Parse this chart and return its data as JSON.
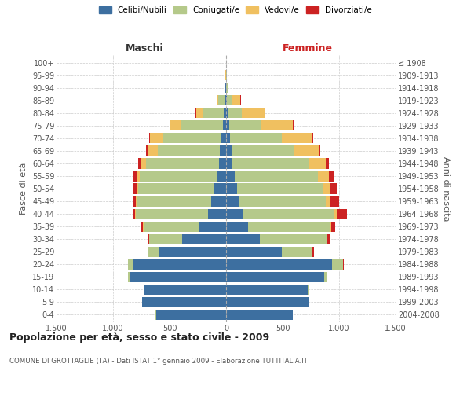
{
  "age_groups": [
    "0-4",
    "5-9",
    "10-14",
    "15-19",
    "20-24",
    "25-29",
    "30-34",
    "35-39",
    "40-44",
    "45-49",
    "50-54",
    "55-59",
    "60-64",
    "65-69",
    "70-74",
    "75-79",
    "80-84",
    "85-89",
    "90-94",
    "95-99",
    "100+"
  ],
  "birth_years": [
    "2004-2008",
    "1999-2003",
    "1994-1998",
    "1989-1993",
    "1984-1988",
    "1979-1983",
    "1974-1978",
    "1969-1973",
    "1964-1968",
    "1959-1963",
    "1954-1958",
    "1949-1953",
    "1944-1948",
    "1939-1943",
    "1934-1938",
    "1929-1933",
    "1924-1928",
    "1919-1923",
    "1914-1918",
    "1909-1913",
    "≤ 1908"
  ],
  "male": {
    "celibi": [
      620,
      740,
      720,
      850,
      820,
      590,
      390,
      240,
      160,
      130,
      110,
      85,
      65,
      55,
      45,
      28,
      18,
      12,
      4,
      2,
      1
    ],
    "coniugati": [
      2,
      4,
      8,
      18,
      45,
      100,
      290,
      490,
      640,
      660,
      670,
      680,
      640,
      550,
      510,
      370,
      190,
      55,
      6,
      1,
      0
    ],
    "vedovi": [
      0,
      0,
      0,
      0,
      1,
      2,
      3,
      4,
      7,
      10,
      15,
      28,
      48,
      88,
      118,
      95,
      58,
      18,
      4,
      1,
      0
    ],
    "divorziati": [
      0,
      0,
      0,
      1,
      2,
      5,
      10,
      15,
      20,
      25,
      30,
      30,
      25,
      14,
      10,
      5,
      2,
      0,
      0,
      0,
      0
    ]
  },
  "female": {
    "nubili": [
      590,
      730,
      720,
      870,
      940,
      490,
      300,
      195,
      150,
      120,
      95,
      75,
      58,
      48,
      35,
      25,
      12,
      8,
      3,
      2,
      1
    ],
    "coniugati": [
      2,
      4,
      8,
      25,
      95,
      270,
      590,
      730,
      810,
      760,
      760,
      740,
      680,
      555,
      455,
      290,
      130,
      48,
      8,
      2,
      0
    ],
    "vedovi": [
      0,
      0,
      0,
      1,
      2,
      5,
      5,
      8,
      18,
      38,
      65,
      95,
      145,
      215,
      270,
      275,
      195,
      72,
      12,
      2,
      0
    ],
    "divorziati": [
      0,
      0,
      0,
      1,
      3,
      10,
      20,
      30,
      90,
      85,
      60,
      40,
      25,
      15,
      10,
      5,
      2,
      1,
      0,
      0,
      0
    ]
  },
  "colors": {
    "celibi": "#3d6fa0",
    "coniugati": "#b5c98a",
    "vedovi": "#f0c060",
    "divorziati": "#cc2222"
  },
  "xlim": 1500,
  "title": "Popolazione per età, sesso e stato civile - 2009",
  "subtitle": "COMUNE DI GROTTAGLIE (TA) - Dati ISTAT 1° gennaio 2009 - Elaborazione TUTTITALIA.IT",
  "ylabel_left": "Fasce di età",
  "ylabel_right": "Anni di nascita",
  "label_maschi": "Maschi",
  "label_femmine": "Femmine",
  "legend_labels": [
    "Celibi/Nubili",
    "Coniugati/e",
    "Vedovi/e",
    "Divorziati/e"
  ],
  "bg_color": "#ffffff",
  "grid_color": "#cccccc"
}
